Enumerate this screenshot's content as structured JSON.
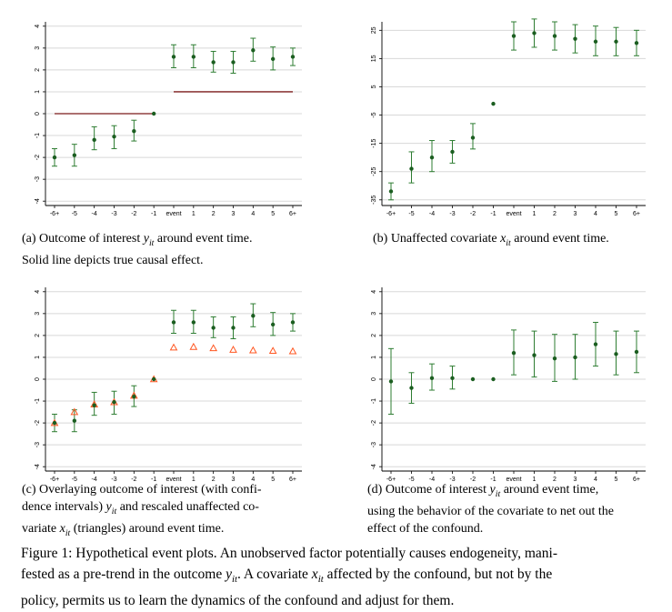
{
  "colors": {
    "point": "#1b5e20",
    "errorbar": "#2e7d32",
    "effect_line": "#7b1a1a",
    "triangle": "#ff5722",
    "grid": "#d8d8d8"
  },
  "panels": {
    "a": {
      "caption_pre": "(a) Outcome of interest ",
      "var": "y",
      "sub": "it",
      "caption_post": " around event time.",
      "caption_line2": "Solid line depicts true causal effect."
    },
    "b": {
      "caption_pre": "(b) Unaffected covariate ",
      "var": "x",
      "sub": "it",
      "caption_post": " around event time."
    },
    "c": {
      "caption_line1": "(c) Overlaying outcome of interest (with confi-",
      "caption_line2_pre": "dence intervals) ",
      "var": "y",
      "sub": "it",
      "caption_line2_post": " and rescaled unaffected co-",
      "caption_line3_pre": "variate ",
      "var2": "x",
      "sub2": "it",
      "caption_line3_post": " (triangles) around event time."
    },
    "d": {
      "caption_line1_pre": "(d) Outcome of interest ",
      "var": "y",
      "sub": "it",
      "caption_line1_post": " around event time,",
      "caption_line2": "using the behavior of the covariate to net out the",
      "caption_line3": "effect of the confound."
    }
  },
  "figure_caption": {
    "line1": "Figure 1: Hypothetical event plots. An unobserved factor potentially causes endogeneity, mani-",
    "line2_pre": "fested as a pre-trend in the outcome ",
    "line2_var": "y",
    "line2_sub": "it",
    "line2_mid": ". A covariate ",
    "line2_var2": "x",
    "line2_sub2": "it",
    "line2_post": " affected by the confound, but not by the",
    "line3": "policy, permits us to learn the dynamics of the confound and adjust for them."
  },
  "chart_data": [
    {
      "id": "a",
      "type": "scatter",
      "x": [
        "-6+",
        "-5",
        "-4",
        "-3",
        "-2",
        "-1",
        "event",
        "1",
        "2",
        "3",
        "4",
        "5",
        "6+"
      ],
      "y": [
        -2.0,
        -1.9,
        -1.2,
        -1.05,
        -0.8,
        0.0,
        2.6,
        2.6,
        2.35,
        2.35,
        2.9,
        2.5,
        2.6
      ],
      "ci_low": [
        -2.4,
        -2.4,
        -1.65,
        -1.6,
        -1.25,
        null,
        2.1,
        2.1,
        1.9,
        1.85,
        2.4,
        2.0,
        2.2
      ],
      "ci_high": [
        -1.6,
        -1.4,
        -0.6,
        -0.55,
        -0.3,
        null,
        3.15,
        3.15,
        2.85,
        2.85,
        3.45,
        3.05,
        3.0
      ],
      "effect_segments": [
        {
          "x_from": "-6+",
          "x_to": "-1",
          "y": 0
        },
        {
          "x_from": "event",
          "x_to": "6+",
          "y": 1
        }
      ],
      "ylim": [
        -4.2,
        4.2
      ],
      "yticks": [
        -4,
        -3,
        -2,
        -1,
        0,
        1,
        2,
        3,
        4
      ],
      "yticklabels": [
        "-4",
        "-3",
        "-2",
        "-1",
        "0",
        "1",
        "2",
        "3",
        "4"
      ]
    },
    {
      "id": "b",
      "type": "scatter",
      "x": [
        "-6+",
        "-5",
        "-4",
        "-3",
        "-2",
        "-1",
        "event",
        "1",
        "2",
        "3",
        "4",
        "5",
        "6+"
      ],
      "y": [
        -32,
        -24,
        -20,
        -18,
        -13,
        -1,
        23,
        24,
        23,
        22,
        21,
        21,
        20.5
      ],
      "ci_low": [
        -35,
        -29,
        -25,
        -22,
        -17,
        null,
        18,
        19,
        18,
        17,
        16,
        16,
        16
      ],
      "ci_high": [
        -29,
        -18,
        -14,
        -14,
        -8,
        null,
        28,
        29,
        28,
        27,
        26.5,
        26,
        25
      ],
      "ylim": [
        -37,
        28
      ],
      "yticks": [
        -35,
        -25,
        -15,
        -5,
        5,
        15,
        25
      ],
      "yticklabels": [
        "-35",
        "-25",
        "-15",
        "-5",
        "5",
        "15",
        "25"
      ]
    },
    {
      "id": "c",
      "type": "scatter",
      "x": [
        "-6+",
        "-5",
        "-4",
        "-3",
        "-2",
        "-1",
        "event",
        "1",
        "2",
        "3",
        "4",
        "5",
        "6+"
      ],
      "y": [
        -2.0,
        -1.9,
        -1.2,
        -1.05,
        -0.8,
        0.0,
        2.6,
        2.6,
        2.35,
        2.35,
        2.9,
        2.5,
        2.6
      ],
      "ci_low": [
        -2.4,
        -2.4,
        -1.65,
        -1.6,
        -1.25,
        null,
        2.1,
        2.1,
        1.9,
        1.85,
        2.4,
        2.0,
        2.2
      ],
      "ci_high": [
        -1.6,
        -1.4,
        -0.6,
        -0.55,
        -0.3,
        null,
        3.15,
        3.15,
        2.85,
        2.85,
        3.45,
        3.05,
        3.0
      ],
      "triangles": [
        -2.0,
        -1.5,
        -1.15,
        -1.05,
        -0.75,
        0.0,
        1.45,
        1.48,
        1.42,
        1.35,
        1.32,
        1.3,
        1.28
      ],
      "ylim": [
        -4.2,
        4.2
      ],
      "yticks": [
        -4,
        -3,
        -2,
        -1,
        0,
        1,
        2,
        3,
        4
      ],
      "yticklabels": [
        "-4",
        "-3",
        "-2",
        "-1",
        "0",
        "1",
        "2",
        "3",
        "4"
      ]
    },
    {
      "id": "d",
      "type": "scatter",
      "x": [
        "-6+",
        "-5",
        "-4",
        "-3",
        "-2",
        "-1",
        "event",
        "1",
        "2",
        "3",
        "4",
        "5",
        "6+"
      ],
      "y": [
        -0.1,
        -0.4,
        0.05,
        0.05,
        0.0,
        0.0,
        1.2,
        1.1,
        0.95,
        1.0,
        1.6,
        1.15,
        1.25
      ],
      "ci_low": [
        -1.6,
        -1.1,
        -0.5,
        -0.45,
        null,
        null,
        0.2,
        0.1,
        -0.1,
        0.0,
        0.6,
        0.2,
        0.3
      ],
      "ci_high": [
        1.4,
        0.3,
        0.7,
        0.6,
        null,
        null,
        2.25,
        2.2,
        2.05,
        2.05,
        2.6,
        2.2,
        2.2
      ],
      "ylim": [
        -4.2,
        4.2
      ],
      "yticks": [
        -4,
        -3,
        -2,
        -1,
        0,
        1,
        2,
        3,
        4
      ],
      "yticklabels": [
        "-4",
        "-3",
        "-2",
        "-1",
        "0",
        "1",
        "2",
        "3",
        "4"
      ]
    }
  ]
}
